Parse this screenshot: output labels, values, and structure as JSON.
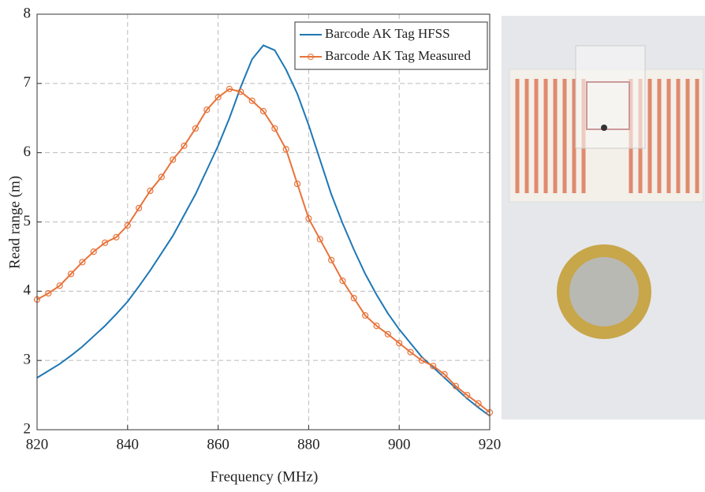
{
  "chart_data": {
    "type": "line",
    "xlabel": "Frequency (MHz)",
    "ylabel": "Read range (m)",
    "x": [
      820,
      822.5,
      825,
      827.5,
      830,
      832.5,
      835,
      837.5,
      840,
      842.5,
      845,
      847.5,
      850,
      852.5,
      855,
      857.5,
      860,
      862.5,
      865,
      867.5,
      870,
      872.5,
      875,
      877.5,
      880,
      882.5,
      885,
      887.5,
      890,
      892.5,
      895,
      897.5,
      900,
      902.5,
      905,
      907.5,
      910,
      912.5,
      915,
      917.5,
      920
    ],
    "series": [
      {
        "name": "Barcode AK Tag HFSS",
        "color": "#1f77b4",
        "marker": false,
        "values": [
          2.75,
          2.85,
          2.95,
          3.07,
          3.2,
          3.35,
          3.5,
          3.67,
          3.85,
          4.07,
          4.3,
          4.55,
          4.8,
          5.1,
          5.4,
          5.75,
          6.1,
          6.5,
          6.95,
          7.35,
          7.55,
          7.48,
          7.2,
          6.85,
          6.4,
          5.9,
          5.4,
          4.98,
          4.6,
          4.25,
          3.95,
          3.68,
          3.45,
          3.25,
          3.05,
          2.9,
          2.75,
          2.6,
          2.45,
          2.32,
          2.2
        ]
      },
      {
        "name": "Barcode AK Tag Measured",
        "color": "#e8733a",
        "marker": true,
        "values": [
          3.88,
          3.97,
          4.08,
          4.25,
          4.42,
          4.57,
          4.7,
          4.78,
          4.95,
          5.2,
          5.45,
          5.65,
          5.9,
          6.1,
          6.35,
          6.62,
          6.8,
          6.92,
          6.88,
          6.75,
          6.6,
          6.35,
          6.05,
          5.55,
          5.05,
          4.75,
          4.45,
          4.15,
          3.9,
          3.65,
          3.5,
          3.38,
          3.25,
          3.12,
          3.0,
          2.92,
          2.8,
          2.63,
          2.5,
          2.38,
          2.25
        ]
      }
    ],
    "xlim": [
      820,
      920
    ],
    "xticks": [
      820,
      840,
      860,
      880,
      900,
      920
    ],
    "ylim": [
      2,
      8
    ],
    "yticks": [
      2,
      3,
      4,
      5,
      6,
      7,
      8
    ],
    "grid": true,
    "legend": "top-right"
  }
}
